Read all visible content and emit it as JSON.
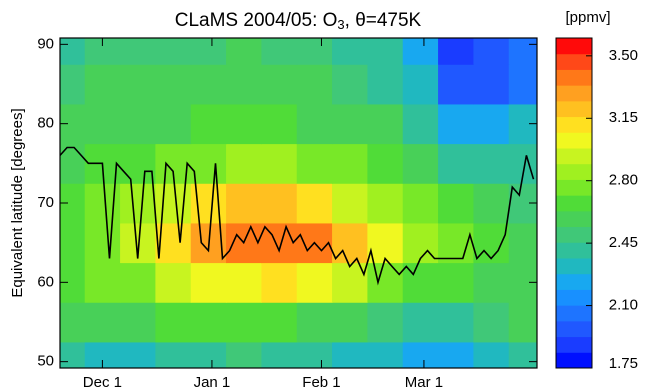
{
  "chart_data": {
    "type": "contour",
    "title": [
      "CLaMS 2004/05:  O",
      "3",
      ", θ=475K"
    ],
    "ylabel": "Equivalent latitude [degrees]",
    "xlim": [
      18,
      153
    ],
    "xticks": [
      {
        "value": 30,
        "label": "Dec 1"
      },
      {
        "value": 61,
        "label": "Jan 1"
      },
      {
        "value": 92,
        "label": "Feb 1"
      },
      {
        "value": 121,
        "label": "Mar 1"
      }
    ],
    "ylim": [
      49.2,
      90.8
    ],
    "yticks": [
      50,
      60,
      70,
      80,
      90
    ],
    "x": [
      20,
      30,
      40,
      50,
      60,
      70,
      80,
      90,
      100,
      110,
      120,
      130,
      140,
      150
    ],
    "y": [
      50,
      55,
      60,
      65,
      70,
      75,
      80,
      85,
      90
    ],
    "z": [
      [
        2.4,
        2.35,
        2.3,
        2.4,
        2.45,
        2.5,
        2.45,
        2.4,
        2.35,
        2.3,
        2.2,
        2.2,
        2.3,
        2.4
      ],
      [
        2.6,
        2.55,
        2.6,
        2.65,
        2.7,
        2.7,
        2.65,
        2.6,
        2.55,
        2.5,
        2.4,
        2.45,
        2.5,
        2.55
      ],
      [
        2.7,
        2.75,
        2.8,
        2.9,
        3.0,
        3.05,
        3.1,
        3.05,
        2.9,
        2.8,
        2.7,
        2.65,
        2.6,
        2.6
      ],
      [
        2.7,
        2.8,
        2.95,
        3.1,
        3.25,
        3.35,
        3.4,
        3.35,
        3.2,
        3.0,
        2.85,
        2.75,
        2.65,
        2.6
      ],
      [
        2.65,
        2.75,
        2.85,
        2.95,
        3.1,
        3.2,
        3.2,
        3.1,
        2.95,
        2.85,
        2.75,
        2.65,
        2.55,
        2.5
      ],
      [
        2.6,
        2.65,
        2.7,
        2.75,
        2.8,
        2.85,
        2.85,
        2.8,
        2.75,
        2.7,
        2.6,
        2.45,
        2.4,
        2.45
      ],
      [
        2.55,
        2.6,
        2.6,
        2.6,
        2.65,
        2.65,
        2.65,
        2.6,
        2.6,
        2.55,
        2.45,
        2.2,
        2.2,
        2.3
      ],
      [
        2.5,
        2.55,
        2.55,
        2.55,
        2.55,
        2.6,
        2.55,
        2.55,
        2.5,
        2.45,
        2.3,
        2.0,
        2.0,
        2.1
      ],
      [
        2.45,
        2.5,
        2.5,
        2.5,
        2.5,
        2.55,
        2.5,
        2.5,
        2.45,
        2.4,
        2.2,
        1.9,
        1.95,
        2.05
      ]
    ],
    "line": {
      "color": "#000000",
      "x": [
        18,
        20,
        22,
        24,
        26,
        28,
        30,
        32,
        34,
        36,
        38,
        40,
        42,
        44,
        46,
        48,
        50,
        52,
        54,
        56,
        58,
        60,
        62,
        64,
        66,
        68,
        70,
        72,
        74,
        76,
        78,
        80,
        82,
        84,
        86,
        88,
        90,
        92,
        94,
        96,
        98,
        100,
        102,
        104,
        106,
        108,
        110,
        112,
        114,
        116,
        118,
        120,
        122,
        124,
        126,
        128,
        130,
        132,
        134,
        136,
        138,
        140,
        142,
        144,
        146,
        148,
        150,
        152
      ],
      "values": [
        76,
        77,
        77,
        76,
        75,
        75,
        75,
        63,
        75,
        74,
        73,
        63,
        74,
        74,
        63,
        75,
        74,
        65,
        75,
        74,
        65,
        64,
        75,
        63,
        64,
        66,
        65,
        67,
        65,
        67,
        66,
        64,
        67,
        65,
        66,
        64,
        65,
        64,
        65,
        63,
        64,
        62,
        63,
        61,
        64,
        60,
        63,
        62,
        61,
        62,
        61,
        63,
        64,
        63,
        63,
        63,
        63,
        63,
        66,
        63,
        64,
        63,
        64,
        66,
        72,
        71,
        76,
        73
      ]
    },
    "colorbar": {
      "label": "[ppmv]",
      "lim": [
        1.75,
        3.6
      ],
      "ticks": [
        1.75,
        {
          "value": 2.1,
          "label": "2.10"
        },
        2.45,
        {
          "value": 2.8,
          "label": "2.80"
        },
        3.15,
        {
          "value": 3.5,
          "label": "3.50"
        }
      ],
      "colors": [
        "#0010ff",
        "#1a3cff",
        "#2058ff",
        "#1e74ff",
        "#1890ff",
        "#18a8f0",
        "#20b8c0",
        "#30c09a",
        "#40c878",
        "#48d058",
        "#50dc38",
        "#78e828",
        "#a0f020",
        "#c8f420",
        "#f0f820",
        "#ffe020",
        "#ffc020",
        "#ffa020",
        "#ff7818",
        "#ff4818",
        "#ff0a0a"
      ]
    }
  }
}
